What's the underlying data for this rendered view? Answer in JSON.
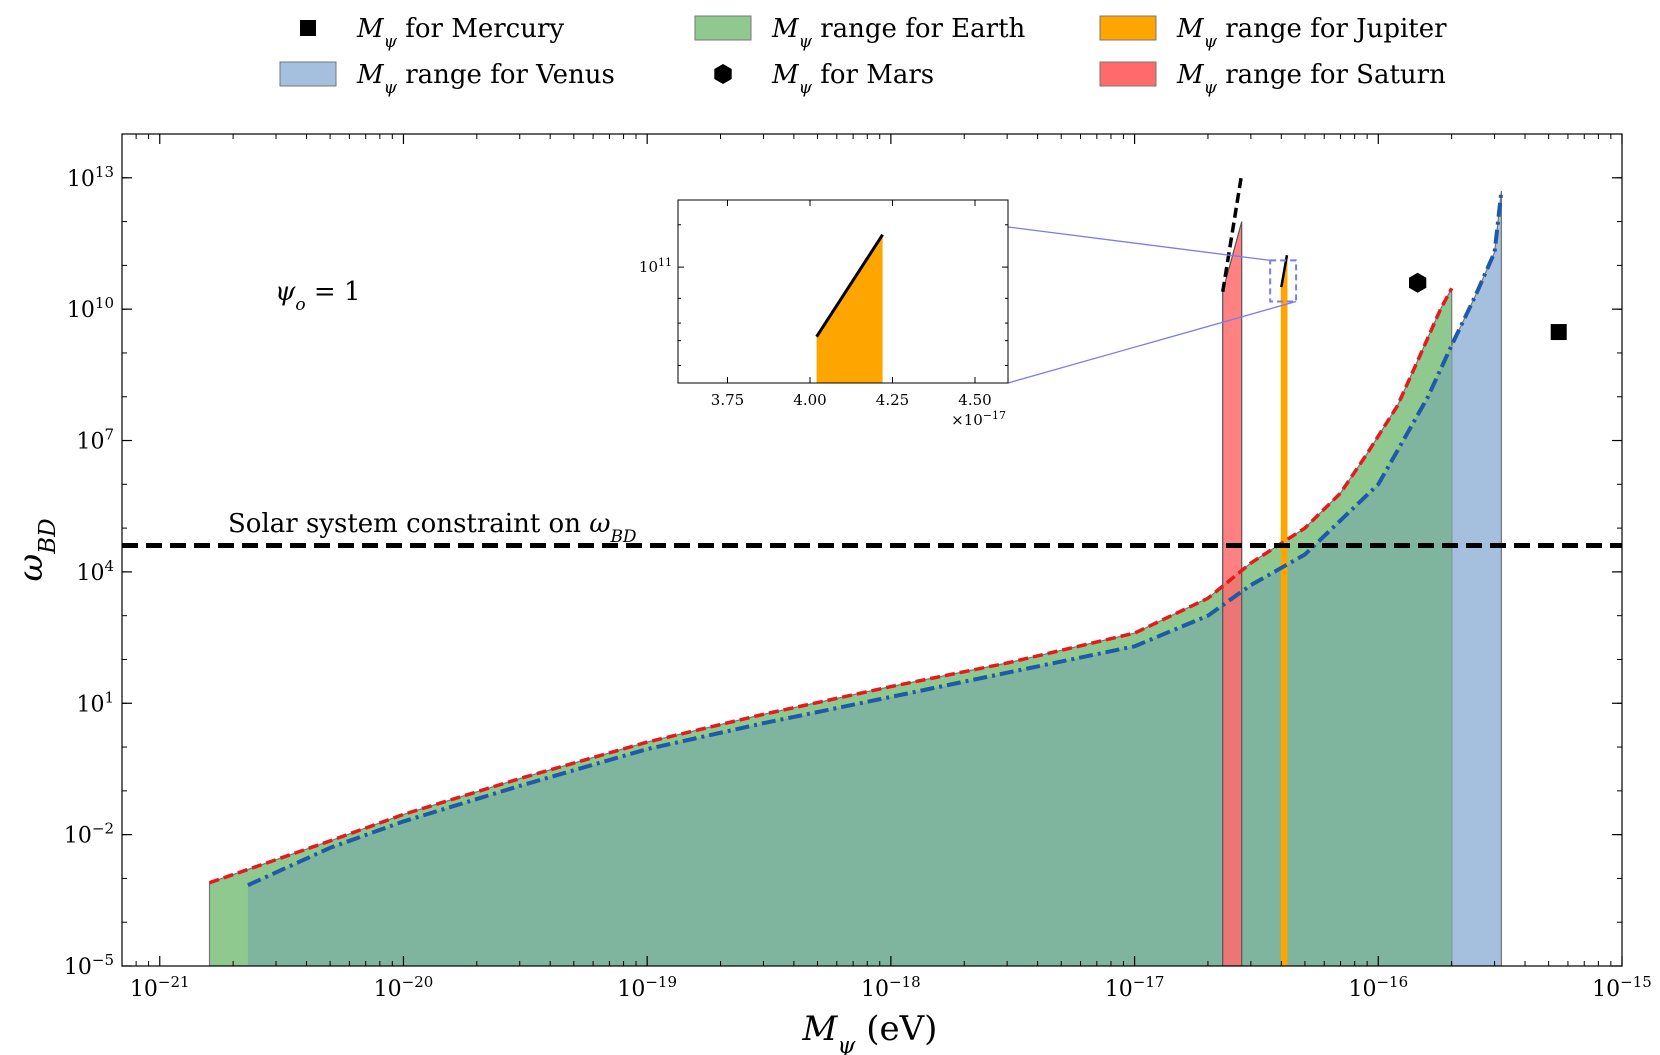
{
  "chart_data": {
    "type": "area",
    "xlabel": "M_ψ (eV)",
    "xlabel_parts": {
      "sym": "M",
      "sub": "ψ",
      "rest": " (eV)"
    },
    "ylabel": "ω_BD",
    "ylabel_parts": {
      "sym": "ω",
      "sub": "BD"
    },
    "x_scale": "log",
    "y_scale": "log",
    "xlim": [
      7e-22,
      1e-15
    ],
    "ylim": [
      1e-05,
      100000000000000.0
    ],
    "x_ticks": [
      {
        "value": 1e-21,
        "base": "10",
        "exp": "−21"
      },
      {
        "value": 1e-20,
        "base": "10",
        "exp": "−20"
      },
      {
        "value": 1e-19,
        "base": "10",
        "exp": "−19"
      },
      {
        "value": 1e-18,
        "base": "10",
        "exp": "−18"
      },
      {
        "value": 1e-17,
        "base": "10",
        "exp": "−17"
      },
      {
        "value": 1e-16,
        "base": "10",
        "exp": "−16"
      },
      {
        "value": 1e-15,
        "base": "10",
        "exp": "−15"
      }
    ],
    "y_ticks": [
      {
        "value": 1e-05,
        "base": "10",
        "exp": "−5"
      },
      {
        "value": 0.01,
        "base": "10",
        "exp": "−2"
      },
      {
        "value": 10.0,
        "base": "10",
        "exp": "1"
      },
      {
        "value": 10000.0,
        "base": "10",
        "exp": "4"
      },
      {
        "value": 10000000.0,
        "base": "10",
        "exp": "7"
      },
      {
        "value": 10000000000.0,
        "base": "10",
        "exp": "10"
      },
      {
        "value": 10000000000000.0,
        "base": "10",
        "exp": "13"
      }
    ],
    "annotation": {
      "sym": "ψ",
      "sub": "o",
      "rest": " = 1"
    },
    "constraint": {
      "label": "Solar system constraint on ",
      "label_sym": "ω",
      "label_sub": "BD",
      "value": 40000
    },
    "colors": {
      "earth": "#8fc98f",
      "venus": "#a5c0de",
      "overlap": "#7fb49e",
      "jupiter": "#ffa500",
      "saturn": "#ff6b6b",
      "earth_curve": "#e8191b",
      "venus_curve": "#1f5aa6",
      "zoom_box": "#7b7bf0",
      "constraint": "#000000"
    },
    "legend": [
      {
        "marker": "square",
        "sym": "M",
        "sub": "ψ",
        "text": " for Mercury",
        "color": "#000000"
      },
      {
        "marker": "patch",
        "sym": "M",
        "sub": "ψ",
        "text": " range for Venus",
        "color": "#a5c0de"
      },
      {
        "marker": "patch",
        "sym": "M",
        "sub": "ψ",
        "text": " range for Earth",
        "color": "#8fc98f"
      },
      {
        "marker": "hexagon",
        "sym": "M",
        "sub": "ψ",
        "text": " for Mars",
        "color": "#000000"
      },
      {
        "marker": "patch",
        "sym": "M",
        "sub": "ψ",
        "text": " range for Jupiter",
        "color": "#ffa500"
      },
      {
        "marker": "patch",
        "sym": "M",
        "sub": "ψ",
        "text": " range for Saturn",
        "color": "#ff6b6b"
      }
    ],
    "series": [
      {
        "name": "Earth",
        "kind": "range",
        "x": [
          1.6e-21,
          2.3e-21,
          5e-21,
          1e-20,
          3e-20,
          1e-19,
          3e-19,
          1e-18,
          3e-18,
          1e-17,
          2e-17,
          3e-17,
          5e-17,
          7e-17,
          9e-17,
          1.2e-16,
          1.5e-16,
          1.8e-16,
          2e-16
        ],
        "y": [
          0.0008,
          0.0016,
          0.0072,
          0.029,
          0.19,
          1.3,
          5.6,
          24,
          83,
          400,
          2500,
          16000,
          100000,
          630000.0,
          5000000.0,
          63000000.0,
          1000000000.0,
          10000000000.0,
          30000000000.0
        ]
      },
      {
        "name": "Venus",
        "kind": "range",
        "x": [
          2.3e-21,
          5e-21,
          1e-20,
          3e-20,
          1e-19,
          3e-19,
          1e-18,
          3e-18,
          1e-17,
          2e-17,
          3e-17,
          5e-17,
          7e-17,
          1e-16,
          1.3e-16,
          1.6e-16,
          2e-16,
          2.5e-16,
          3e-16,
          3.2e-16
        ],
        "y": [
          0.0007,
          0.005,
          0.02,
          0.13,
          0.9,
          3.5,
          14,
          50,
          200,
          1000,
          5000,
          25000,
          150000.0,
          1000000.0,
          13000000.0,
          100000000.0,
          1500000000.0,
          20000000000.0,
          200000000000.0,
          5000000000000.0
        ]
      },
      {
        "name": "Saturn",
        "kind": "range",
        "x_range": [
          2.3e-17,
          2.75e-17
        ],
        "y_top": [
          25000000000.0,
          1000000000000.0
        ],
        "edge_x": [
          2.3e-17,
          2.75e-17
        ],
        "edge_y": [
          25000000000.0,
          12000000000000.0
        ]
      },
      {
        "name": "Jupiter",
        "kind": "range",
        "x_range": [
          4e-17,
          4.22e-17
        ],
        "y_top": [
          32000000000.0,
          170000000000.0
        ]
      },
      {
        "name": "Mercury",
        "kind": "point",
        "x": 5.5e-16,
        "y": 3000000000.0
      },
      {
        "name": "Mars",
        "kind": "point",
        "x": 1.45e-16,
        "y": 40000000000.0
      }
    ],
    "inset": {
      "xlim": [
        3.6e-17,
        4.6e-17
      ],
      "ylim": [
        15000000000.0,
        300000000000.0
      ],
      "x_ticks": [
        {
          "value": 3.75e-17,
          "label": "3.75"
        },
        {
          "value": 4e-17,
          "label": "4.00"
        },
        {
          "value": 4.25e-17,
          "label": "4.25"
        },
        {
          "value": 4.5e-17,
          "label": "4.50"
        }
      ],
      "y_ticks": [
        {
          "value": 100000000000.0,
          "base": "10",
          "exp": "11"
        }
      ],
      "offset_label": {
        "base": "×10",
        "exp": "−17"
      },
      "jupiter_line": {
        "x": [
          4.02e-17,
          4.22e-17
        ],
        "y": [
          32000000000.0,
          170000000000.0
        ]
      },
      "zoom_region": {
        "x": [
          3.6e-17,
          4.6e-17
        ],
        "y": [
          15000000000.0,
          130000000000.0
        ]
      }
    }
  }
}
